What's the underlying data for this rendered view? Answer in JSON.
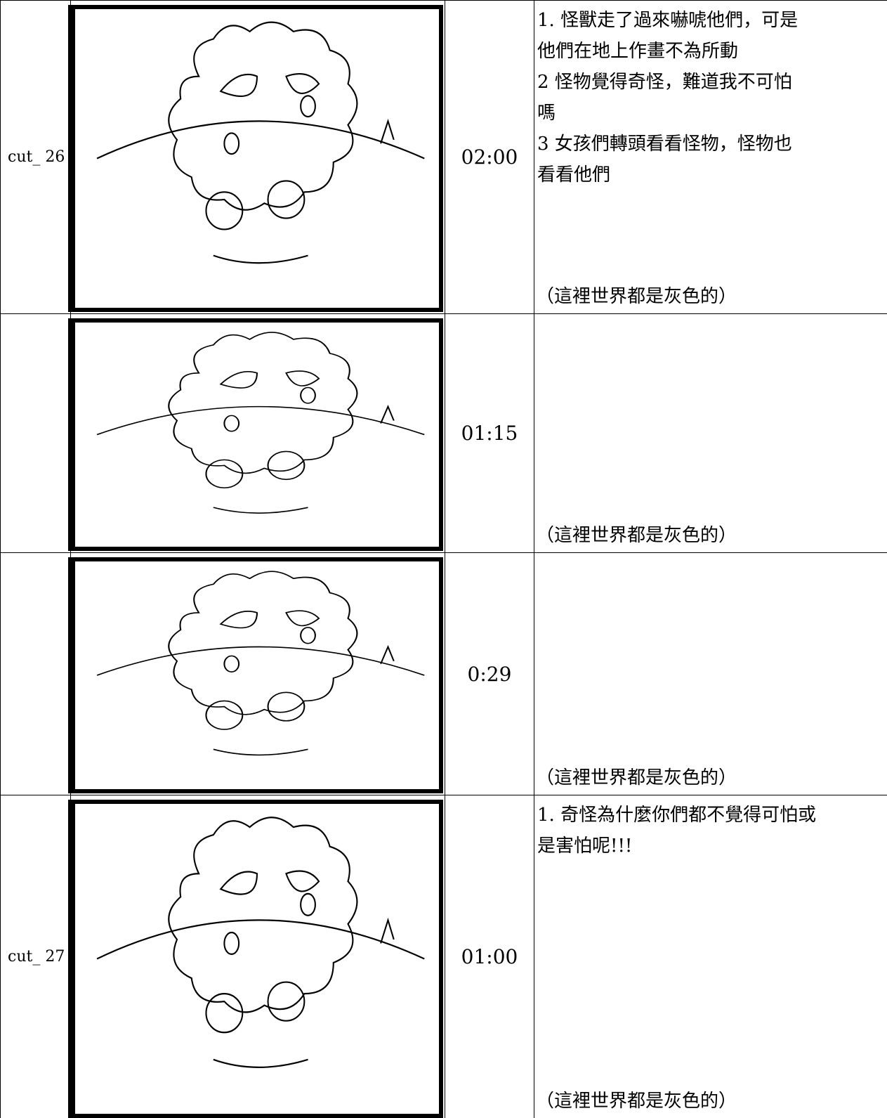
{
  "rows": [
    {
      "cut": "cut_ 26",
      "time": "02:00",
      "lines": [
        "1. 怪獸走了過來嚇唬他們，可是",
        "他們在地上作畫不為所動",
        "2 怪物覺得奇怪，難道我不可怕",
        "嗎",
        "3 女孩們轉頭看看怪物，怪物也",
        "看看他們"
      ],
      "note": "（這裡世界都是灰色的）"
    },
    {
      "cut": null,
      "time": "01:15",
      "lines": [],
      "note": "（這裡世界都是灰色的）"
    },
    {
      "cut": null,
      "time": "0:29",
      "lines": [],
      "note": "（這裡世界都是灰色的）"
    },
    {
      "cut": "cut_ 27",
      "time": "01:00",
      "lines": [
        "1. 奇怪為什麼你們都不覺得可怕或",
        "是害怕呢!!!"
      ],
      "note": "（這裡世界都是灰色的）"
    }
  ]
}
